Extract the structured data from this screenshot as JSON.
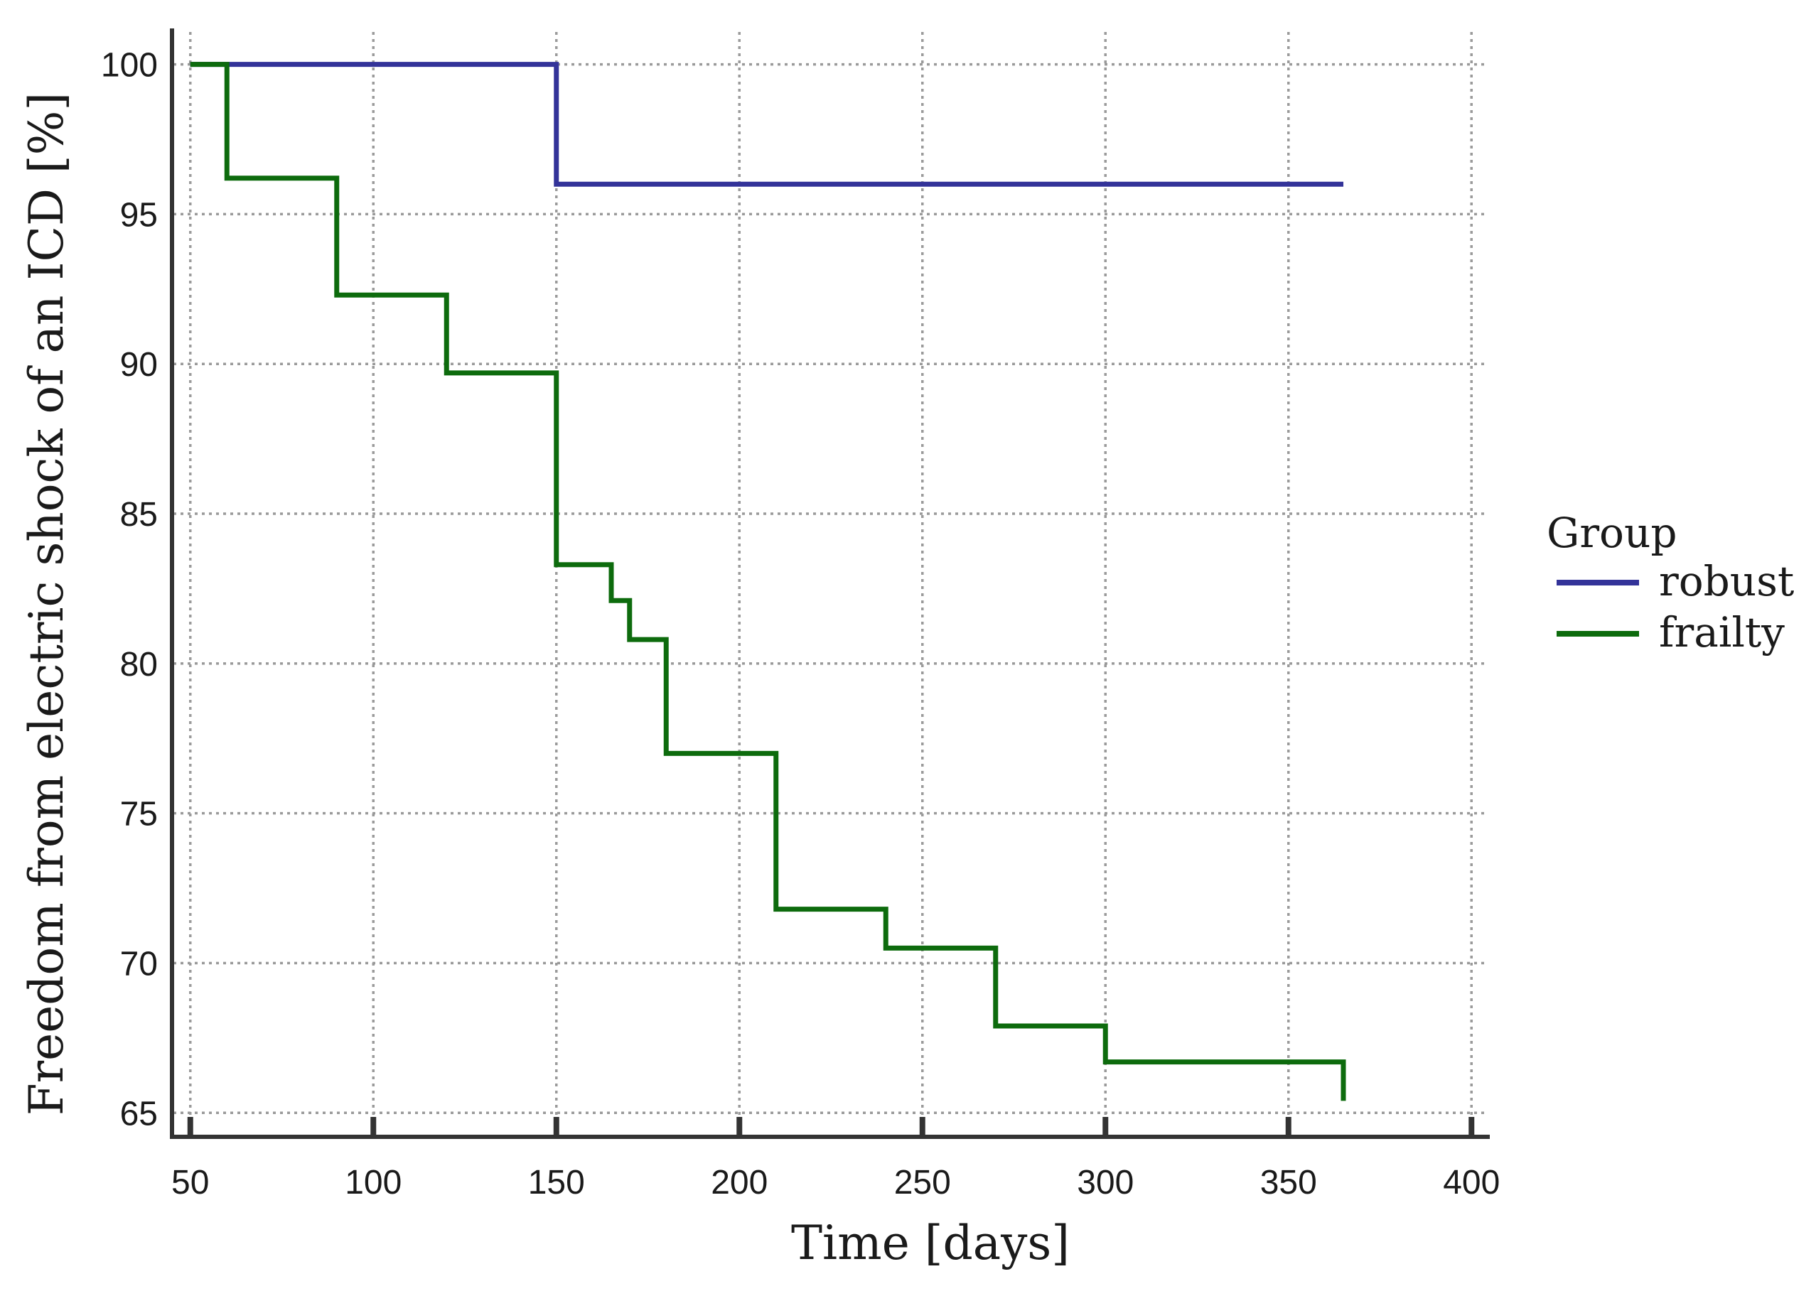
{
  "chart_data": {
    "type": "line",
    "step": true,
    "title": "",
    "xlabel": "Time  [days]",
    "ylabel": "Freedom from electric shock of an ICD [%]",
    "xlim": [
      45,
      405
    ],
    "ylim": [
      64.2,
      101.2
    ],
    "xticks": [
      50,
      100,
      150,
      200,
      250,
      300,
      350,
      400
    ],
    "yticks": [
      65,
      70,
      75,
      80,
      85,
      90,
      95,
      100
    ],
    "grid": true,
    "legend": {
      "title": "Group",
      "position": "right"
    },
    "series": [
      {
        "name": "robust",
        "color": "#333399",
        "x": [
          50,
          150,
          365
        ],
        "y": [
          100,
          96.0,
          96.0
        ]
      },
      {
        "name": "frailty",
        "color": "#0d6b0d",
        "x": [
          50,
          60,
          90,
          120,
          150,
          165,
          170,
          180,
          210,
          240,
          270,
          300,
          365,
          365
        ],
        "y": [
          100,
          96.2,
          92.3,
          89.7,
          83.3,
          82.1,
          80.8,
          77.0,
          71.8,
          70.5,
          67.9,
          66.7,
          66.7,
          65.4
        ]
      }
    ]
  }
}
